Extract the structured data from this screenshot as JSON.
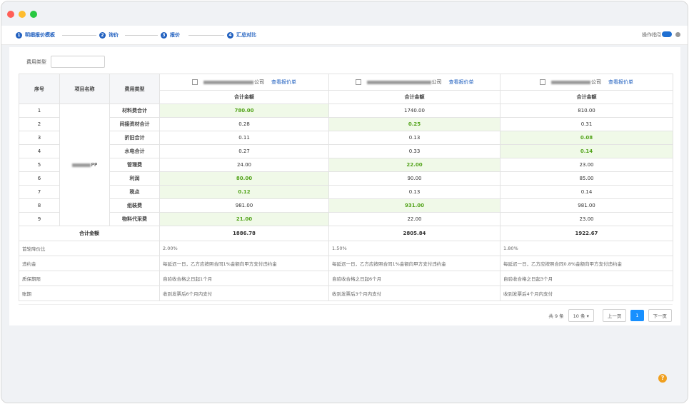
{
  "window": {
    "steps": [
      {
        "number": "1",
        "label": "明细报价模板"
      },
      {
        "number": "2",
        "label": "询价"
      },
      {
        "number": "3",
        "label": "报价"
      },
      {
        "number": "4",
        "label": "汇总对比"
      }
    ],
    "guide": "操作指引"
  },
  "filter": {
    "label": "费用类型"
  },
  "table": {
    "headers": {
      "index": "序号",
      "project": "项目名称",
      "cost_type": "费用类型",
      "subheader": "合计金额"
    },
    "suppliers": [
      {
        "name": "公司",
        "link": "查看报价单"
      },
      {
        "name": "公司",
        "link": "查看报价单"
      },
      {
        "name": "公司",
        "link": "查看报价单"
      }
    ],
    "project": "PP",
    "rows": [
      {
        "index": "1",
        "cost_type": "材料费合计",
        "amounts": [
          "780.00",
          "1740.00",
          "810.00"
        ]
      },
      {
        "index": "2",
        "cost_type": "间接资材合计",
        "amounts": [
          "0.28",
          "0.25",
          "0.31"
        ]
      },
      {
        "index": "3",
        "cost_type": "折旧合计",
        "amounts": [
          "0.11",
          "0.13",
          "0.08"
        ]
      },
      {
        "index": "4",
        "cost_type": "水电合计",
        "amounts": [
          "0.27",
          "0.33",
          "0.14"
        ]
      },
      {
        "index": "5",
        "cost_type": "管理费",
        "amounts": [
          "24.00",
          "22.00",
          "23.00"
        ]
      },
      {
        "index": "6",
        "cost_type": "利润",
        "amounts": [
          "80.00",
          "90.00",
          "85.00"
        ]
      },
      {
        "index": "7",
        "cost_type": "税点",
        "amounts": [
          "0.12",
          "0.13",
          "0.14"
        ]
      },
      {
        "index": "8",
        "cost_type": "组装费",
        "amounts": [
          "981.00",
          "931.00",
          "981.00"
        ]
      },
      {
        "index": "9",
        "cost_type": "物料代采费",
        "amounts": [
          "21.00",
          "22.00",
          "23.00"
        ]
      }
    ],
    "total": {
      "label": "合计金额",
      "amounts": [
        "1886.78",
        "2805.84",
        "1922.67"
      ]
    },
    "extra_rows": [
      {
        "label": "首轮降价比",
        "values": [
          "2.00%",
          "1.50%",
          "1.80%"
        ]
      },
      {
        "label": "违约金",
        "values": [
          "每延迟一日，乙方应按照合同1%金额向甲方支付违约金",
          "每延迟一日，乙方应按照合同1%金额向甲方支付违约金",
          "每延迟一日，乙方应按照合同0.8%金额向甲方支付违约金"
        ]
      },
      {
        "label": "质保期限",
        "values": [
          "自验收合格之日起1个月",
          "自验收合格之日起6个月",
          "自验收合格之日起3个月"
        ]
      },
      {
        "label": "账期",
        "values": [
          "收到发票后6个月内支付",
          "收到发票后3个月内支付",
          "收到发票后4个月内支付"
        ]
      }
    ]
  },
  "pagination": {
    "total": "共 9 条",
    "page_size": "10 条",
    "prev": "上一页",
    "current": "1",
    "next": "下一页"
  },
  "help": "?"
}
